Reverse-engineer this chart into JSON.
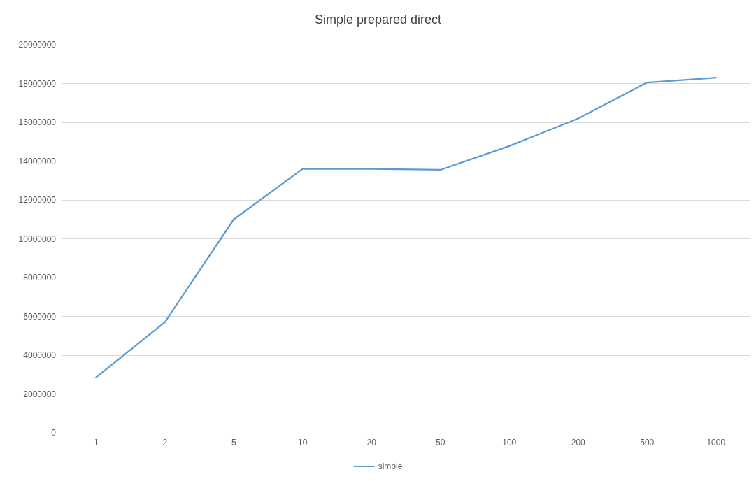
{
  "chart_data": {
    "type": "line",
    "title": "Simple prepared direct",
    "categories": [
      "1",
      "2",
      "5",
      "10",
      "20",
      "50",
      "100",
      "200",
      "500",
      "1000"
    ],
    "series": [
      {
        "name": "simple",
        "color": "#5b9bd5",
        "values": [
          2850000,
          5700000,
          11000000,
          13600000,
          13600000,
          13550000,
          14780000,
          16200000,
          18050000,
          18300000
        ]
      }
    ],
    "ylim": [
      0,
      20000000
    ],
    "yticks": [
      0,
      2000000,
      4000000,
      6000000,
      8000000,
      10000000,
      12000000,
      14000000,
      16000000,
      18000000,
      20000000
    ],
    "grid": "y",
    "legend": "bottom",
    "marker": "none",
    "line_style": "solid"
  }
}
